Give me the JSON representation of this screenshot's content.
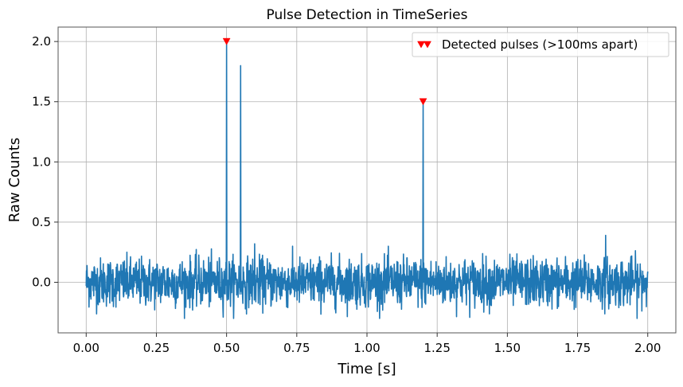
{
  "chart_data": {
    "type": "line",
    "title": "Pulse Detection in TimeSeries",
    "xlabel": "Time [s]",
    "ylabel": "Raw Counts",
    "xlim": [
      -0.1,
      2.1
    ],
    "ylim": [
      -0.42,
      2.12
    ],
    "xticks": [
      0.0,
      0.25,
      0.5,
      0.75,
      1.0,
      1.25,
      1.5,
      1.75,
      2.0
    ],
    "xtick_labels": [
      "0.00",
      "0.25",
      "0.50",
      "0.75",
      "1.00",
      "1.25",
      "1.50",
      "1.75",
      "2.00"
    ],
    "yticks": [
      0.0,
      0.5,
      1.0,
      1.5,
      2.0
    ],
    "ytick_labels": [
      "0.0",
      "0.5",
      "1.0",
      "1.5",
      "2.0"
    ],
    "grid": true,
    "legend_position": "top-right",
    "series": [
      {
        "kind": "line",
        "color": "#1f77b4",
        "noise": {
          "x_start": 0.0,
          "x_end": 2.0,
          "mean": 0.0,
          "std": 0.1,
          "min": -0.3,
          "max": 0.4
        },
        "spikes": [
          {
            "x": 0.5,
            "y": 2.0
          },
          {
            "x": 0.55,
            "y": 1.8
          },
          {
            "x": 1.2,
            "y": 1.5
          },
          {
            "x": 0.6,
            "y": 0.32
          },
          {
            "x": 1.85,
            "y": 0.39
          }
        ]
      },
      {
        "name": "Detected pulses (>100ms apart)",
        "kind": "marker",
        "marker": "triangle-down",
        "color": "#ff0000",
        "points": [
          {
            "x": 0.5,
            "y": 2.0
          },
          {
            "x": 1.2,
            "y": 1.5
          }
        ]
      }
    ]
  }
}
